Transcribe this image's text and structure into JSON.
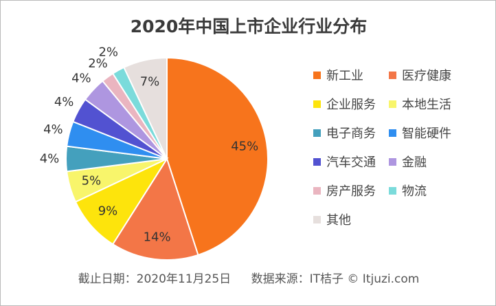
{
  "chart_data": {
    "type": "pie",
    "title": "2020年中国上市企业行业分布",
    "start": "top",
    "direction": "clockwise",
    "slices": [
      {
        "label": "新工业",
        "value": 45,
        "text": "45%",
        "color": "#f7741c",
        "label_pos": "inside"
      },
      {
        "label": "医疗健康",
        "value": 14,
        "text": "14%",
        "color": "#f37647",
        "label_pos": "inside"
      },
      {
        "label": "企业服务",
        "value": 9,
        "text": "9%",
        "color": "#fde40c",
        "label_pos": "inside"
      },
      {
        "label": "本地生活",
        "value": 5,
        "text": "5%",
        "color": "#f8f56b",
        "label_pos": "inside"
      },
      {
        "label": "电子商务",
        "value": 4,
        "text": "4%",
        "color": "#44a0bd",
        "label_pos": "outside"
      },
      {
        "label": "智能硬件",
        "value": 4,
        "text": "4%",
        "color": "#2f8ef0",
        "label_pos": "outside"
      },
      {
        "label": "汽车交通",
        "value": 4,
        "text": "4%",
        "color": "#5252d1",
        "label_pos": "outside"
      },
      {
        "label": "金融",
        "value": 4,
        "text": "4%",
        "color": "#ae96e0",
        "label_pos": "outside"
      },
      {
        "label": "房产服务",
        "value": 2,
        "text": "2%",
        "color": "#eab5c0",
        "label_pos": "outside"
      },
      {
        "label": "物流",
        "value": 2,
        "text": "2%",
        "color": "#7bdbdb",
        "label_pos": "outside"
      },
      {
        "label": "其他",
        "value": 7,
        "text": "7%",
        "color": "#e6dfdd",
        "label_pos": "inside"
      }
    ],
    "legend_position": "right"
  },
  "footer": {
    "date": "截止日期：2020年11月25日",
    "source": "数据来源：IT桔子 © Itjuzi.com"
  }
}
